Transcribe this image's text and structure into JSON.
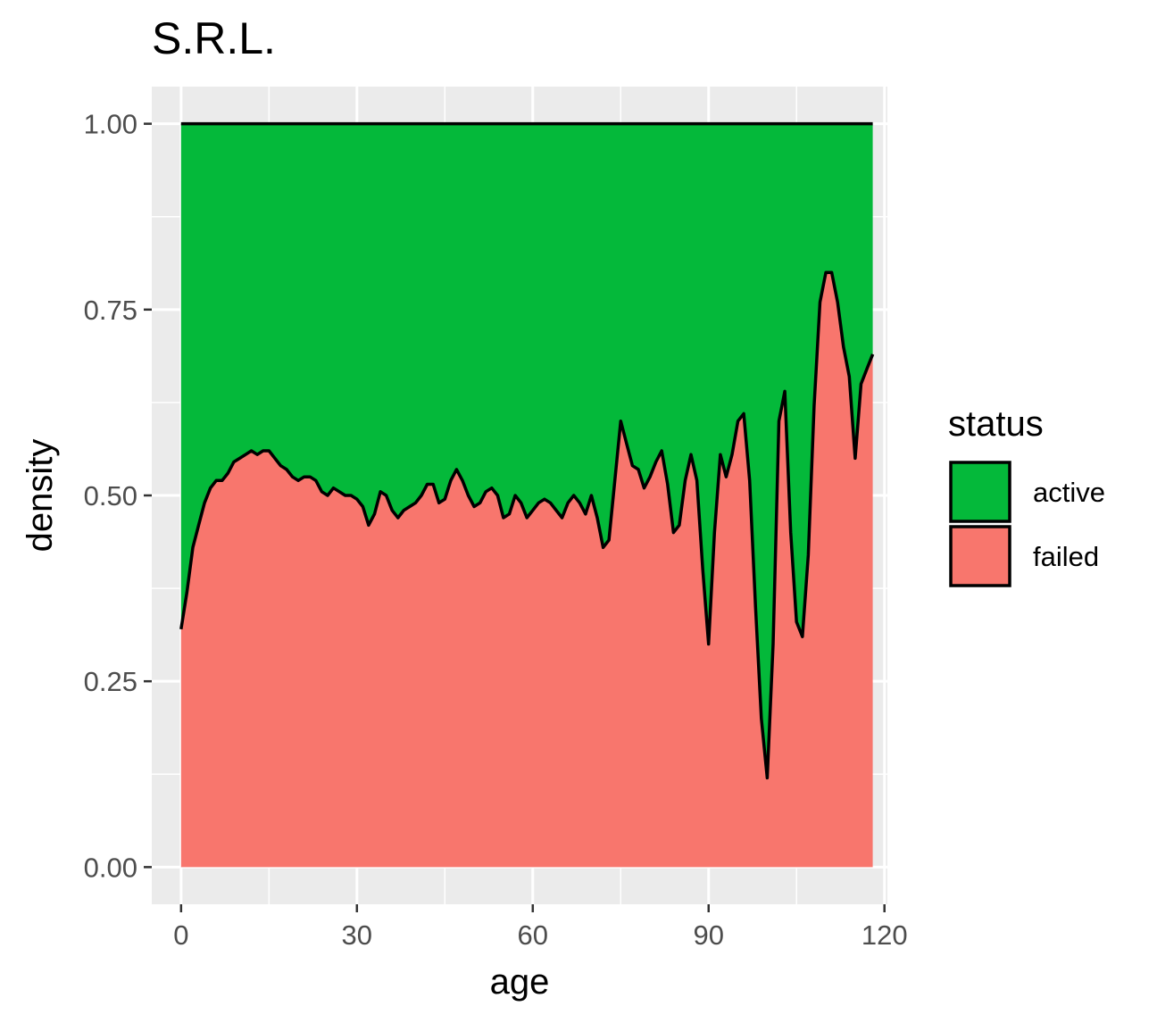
{
  "chart_data": {
    "type": "area",
    "title": "S.R.L.",
    "xlabel": "age",
    "ylabel": "density",
    "xlim": [
      -5,
      120.5
    ],
    "ylim": [
      -0.05,
      1.05
    ],
    "x_ticks": [
      0,
      30,
      60,
      90,
      120
    ],
    "x_tick_labels": [
      "0",
      "30",
      "60",
      "90",
      "120"
    ],
    "y_ticks": [
      0,
      0.25,
      0.5,
      0.75,
      1
    ],
    "y_tick_labels": [
      "0.00",
      "0.25",
      "0.50",
      "0.75",
      "1.00"
    ],
    "grid": true,
    "stacked": true,
    "legend": {
      "title": "status",
      "position": "right",
      "entries": [
        {
          "name": "active",
          "color": "#04B93A"
        },
        {
          "name": "failed",
          "color": "#F8766D"
        }
      ]
    },
    "series": [
      {
        "name": "active",
        "color": "#04B93A",
        "values_note_upper": 1.0
      },
      {
        "name": "failed",
        "color": "#F8766D"
      }
    ],
    "x": [
      0,
      1,
      2,
      3,
      4,
      5,
      6,
      7,
      8,
      9,
      10,
      11,
      12,
      13,
      14,
      15,
      16,
      17,
      18,
      19,
      20,
      21,
      22,
      23,
      24,
      25,
      26,
      27,
      28,
      29,
      30,
      31,
      32,
      33,
      34,
      35,
      36,
      37,
      38,
      39,
      40,
      41,
      42,
      43,
      44,
      45,
      46,
      47,
      48,
      49,
      50,
      51,
      52,
      53,
      54,
      55,
      56,
      57,
      58,
      59,
      60,
      61,
      62,
      63,
      64,
      65,
      66,
      67,
      68,
      69,
      70,
      71,
      72,
      73,
      74,
      75,
      76,
      77,
      78,
      79,
      80,
      81,
      82,
      83,
      84,
      85,
      86,
      87,
      88,
      89,
      90,
      91,
      92,
      93,
      94,
      95,
      96,
      97,
      98,
      99,
      100,
      101,
      102,
      103,
      104,
      105,
      106,
      107,
      108,
      109,
      110,
      111,
      112,
      113,
      114,
      115,
      116,
      117,
      118
    ],
    "failed_fraction": [
      0.32,
      0.37,
      0.43,
      0.46,
      0.49,
      0.51,
      0.52,
      0.52,
      0.53,
      0.545,
      0.55,
      0.555,
      0.56,
      0.555,
      0.56,
      0.56,
      0.55,
      0.54,
      0.535,
      0.525,
      0.52,
      0.525,
      0.525,
      0.52,
      0.505,
      0.5,
      0.51,
      0.505,
      0.5,
      0.5,
      0.495,
      0.485,
      0.46,
      0.475,
      0.505,
      0.5,
      0.48,
      0.47,
      0.48,
      0.485,
      0.49,
      0.5,
      0.515,
      0.515,
      0.49,
      0.495,
      0.52,
      0.535,
      0.52,
      0.5,
      0.485,
      0.49,
      0.505,
      0.51,
      0.5,
      0.47,
      0.475,
      0.5,
      0.49,
      0.47,
      0.48,
      0.49,
      0.495,
      0.49,
      0.48,
      0.47,
      0.49,
      0.5,
      0.49,
      0.475,
      0.5,
      0.47,
      0.43,
      0.44,
      0.52,
      0.6,
      0.57,
      0.54,
      0.535,
      0.51,
      0.525,
      0.545,
      0.56,
      0.515,
      0.45,
      0.46,
      0.52,
      0.555,
      0.52,
      0.4,
      0.3,
      0.45,
      0.555,
      0.525,
      0.555,
      0.6,
      0.61,
      0.52,
      0.35,
      0.2,
      0.12,
      0.3,
      0.6,
      0.64,
      0.45,
      0.33,
      0.31,
      0.42,
      0.62,
      0.76,
      0.8,
      0.8,
      0.76,
      0.7,
      0.66,
      0.55,
      0.65,
      0.67,
      0.69
    ]
  }
}
